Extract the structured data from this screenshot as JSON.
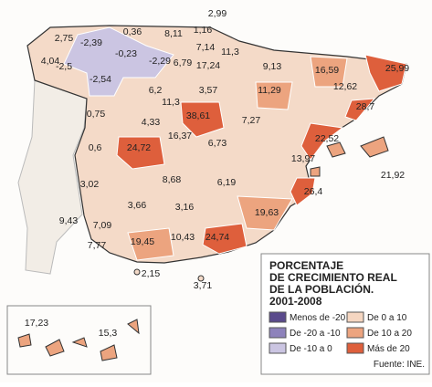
{
  "title_lines": [
    "PORCENTAJE",
    "DE CRECIMIENTO REAL",
    "DE LA POBLACIÓN.",
    "2001-2008"
  ],
  "legend": [
    {
      "label": "Menos de -20",
      "color": "#5a4a8c"
    },
    {
      "label": "De -20 a -10",
      "color": "#8d82bb"
    },
    {
      "label": "De -10 a 0",
      "color": "#cbc5e2"
    },
    {
      "label": "De 0 a 10",
      "color": "#f5d6c1"
    },
    {
      "label": "De 10 a 20",
      "color": "#eca47f"
    },
    {
      "label": "Más de 20",
      "color": "#de5f3c"
    }
  ],
  "source": "Fuente: INE.",
  "regions": [
    "2,99",
    "2,75",
    "-2,39",
    "0,36",
    "8,11",
    "1,16",
    "7,14",
    "11,3",
    "4,04",
    "-2,5",
    "-0,23",
    "-2,29",
    "6,79",
    "17,24",
    "9,13",
    "16,59",
    "25,99",
    "-2,54",
    "6,2",
    "3,57",
    "11,29",
    "12,62",
    "11,3",
    "28,7",
    "0,75",
    "4,33",
    "38,61",
    "7,27",
    "16,37",
    "22,52",
    "0,6",
    "24,72",
    "6,73",
    "13,97",
    "21,92",
    "3,02",
    "8,68",
    "6,19",
    "26,4",
    "3,66",
    "3,16",
    "19,63",
    "9,43",
    "7,09",
    "19,45",
    "10,43",
    "24,74",
    "7,77",
    "2,15",
    "3,71",
    "17,23",
    "15,3"
  ]
}
